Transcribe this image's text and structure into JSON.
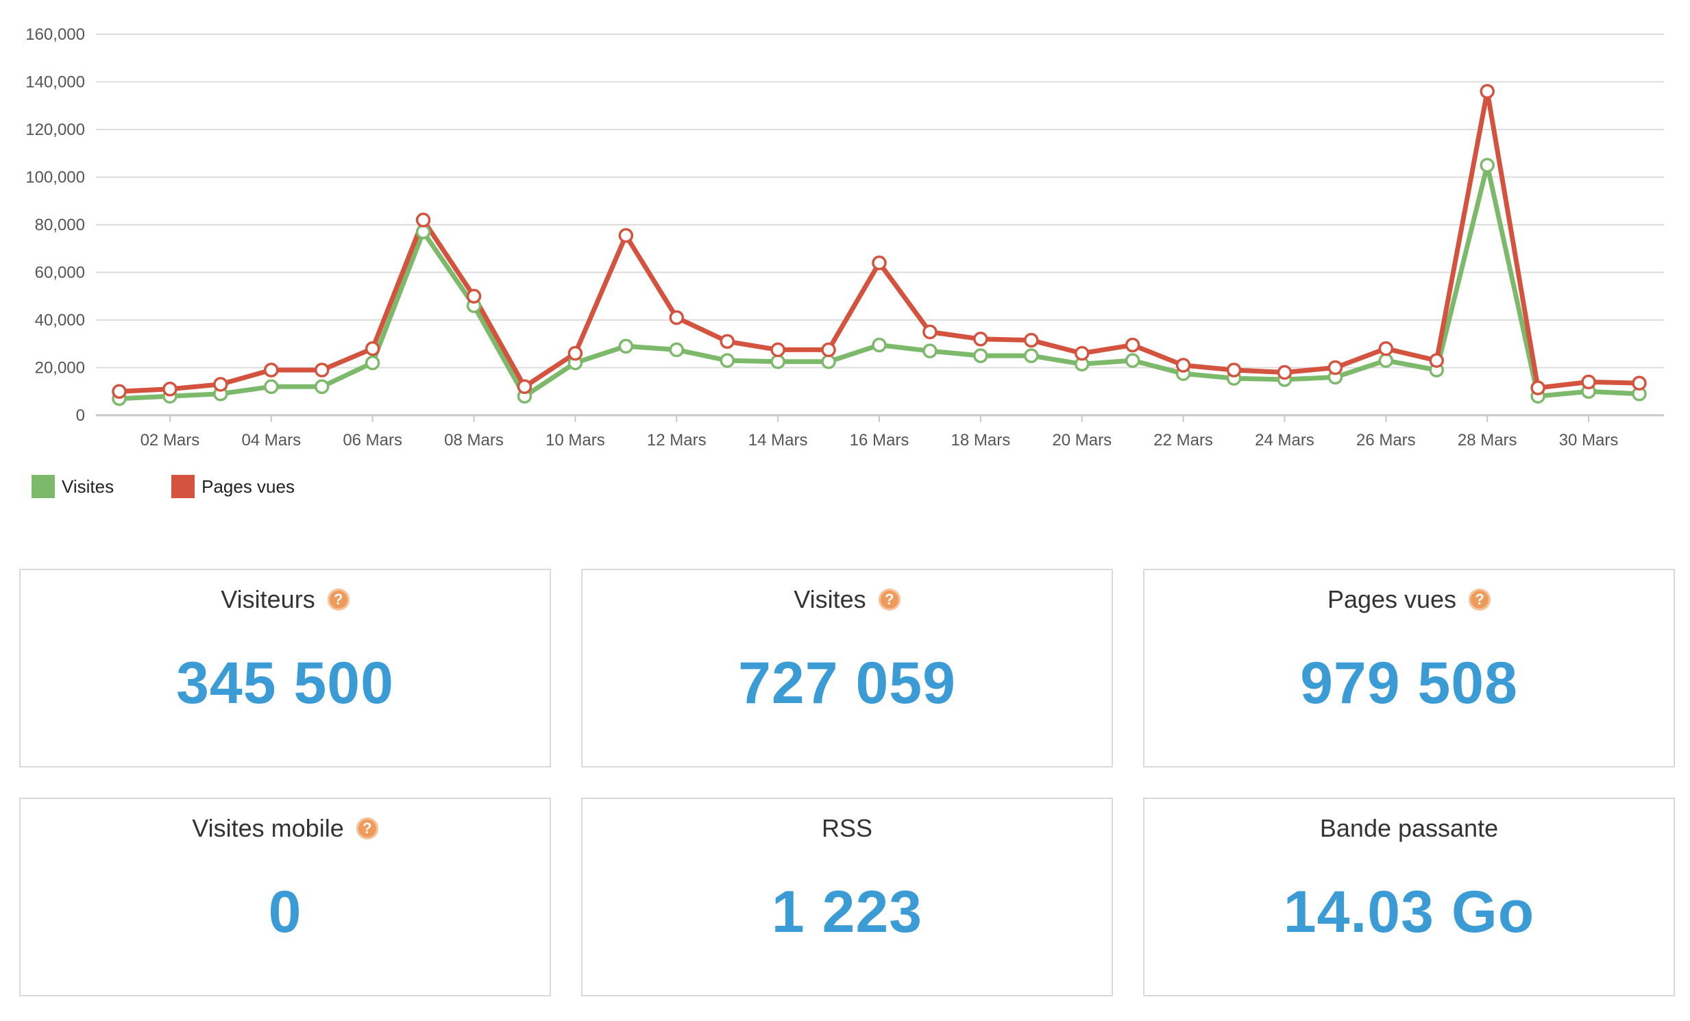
{
  "chart_data": {
    "type": "line",
    "x": [
      "01 Mars",
      "02 Mars",
      "03 Mars",
      "04 Mars",
      "05 Mars",
      "06 Mars",
      "07 Mars",
      "08 Mars",
      "09 Mars",
      "10 Mars",
      "11 Mars",
      "12 Mars",
      "13 Mars",
      "14 Mars",
      "15 Mars",
      "16 Mars",
      "17 Mars",
      "18 Mars",
      "19 Mars",
      "20 Mars",
      "21 Mars",
      "22 Mars",
      "23 Mars",
      "24 Mars",
      "25 Mars",
      "26 Mars",
      "27 Mars",
      "28 Mars",
      "29 Mars",
      "30 Mars",
      "31 Mars"
    ],
    "x_tick_labels": [
      "02 Mars",
      "04 Mars",
      "06 Mars",
      "08 Mars",
      "10 Mars",
      "12 Mars",
      "14 Mars",
      "16 Mars",
      "18 Mars",
      "20 Mars",
      "22 Mars",
      "24 Mars",
      "26 Mars",
      "28 Mars",
      "30 Mars"
    ],
    "y_tick_labels": [
      "0",
      "20,000",
      "40,000",
      "60,000",
      "80,000",
      "100,000",
      "120,000",
      "140,000",
      "160,000"
    ],
    "ylim": [
      0,
      160000
    ],
    "grid": true,
    "legend": "bottom-left",
    "series": [
      {
        "name": "Visites",
        "color": "#7cb96a",
        "values": [
          7000,
          8000,
          9000,
          12000,
          12000,
          22000,
          77000,
          46000,
          8000,
          22000,
          29000,
          27500,
          23000,
          22500,
          22500,
          29500,
          27000,
          25000,
          25000,
          21500,
          23000,
          17500,
          15500,
          15000,
          16000,
          23000,
          19000,
          105000,
          8000,
          10000,
          9000
        ]
      },
      {
        "name": "Pages vues",
        "color": "#d4533f",
        "values": [
          10000,
          11000,
          13000,
          19000,
          19000,
          28000,
          82000,
          50000,
          12000,
          26000,
          75500,
          41000,
          31000,
          27500,
          27500,
          64000,
          35000,
          32000,
          31500,
          26000,
          29500,
          21000,
          19000,
          18000,
          20000,
          28000,
          23000,
          136000,
          11500,
          14000,
          13500
        ]
      }
    ]
  },
  "legend": {
    "visites": "Visites",
    "pages_vues": "Pages vues"
  },
  "cards": {
    "visiteurs": {
      "title": "Visiteurs",
      "value": "345 500"
    },
    "visites": {
      "title": "Visites",
      "value": "727 059"
    },
    "pages_vues": {
      "title": "Pages vues",
      "value": "979 508"
    },
    "visites_mobile": {
      "title": "Visites mobile",
      "value": "0"
    },
    "rss": {
      "title": "RSS",
      "value": "1 223"
    },
    "bande_passante": {
      "title": "Bande passante",
      "value": "14.03 Go"
    }
  },
  "help_icon_glyph": "?",
  "colors": {
    "accent_value": "#3b9bd4",
    "help_icon": "#ee9a5b",
    "grid": "#dcdcdc"
  }
}
